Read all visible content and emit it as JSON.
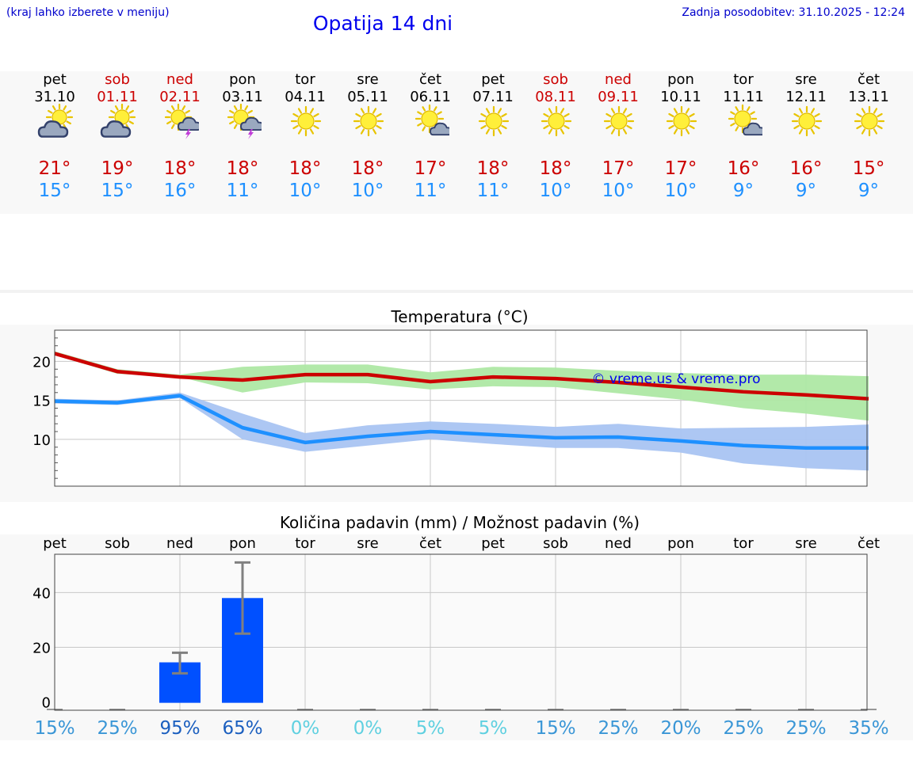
{
  "header": {
    "hint": "(kraj lahko izberete v meniju)",
    "title": "Opatija 14 dni",
    "updated": "Zadnja posodobitev: 31.10.2025 - 12:24"
  },
  "days": [
    {
      "name": "pet",
      "date": "31.10",
      "weekend": false,
      "icon": "sun-cloud-icon",
      "tmax": "21°",
      "tmin": "15°"
    },
    {
      "name": "sob",
      "date": "01.11",
      "weekend": true,
      "icon": "sun-cloud-icon",
      "tmax": "19°",
      "tmin": "15°"
    },
    {
      "name": "ned",
      "date": "02.11",
      "weekend": true,
      "icon": "sun-thunder-icon",
      "tmax": "18°",
      "tmin": "16°"
    },
    {
      "name": "pon",
      "date": "03.11",
      "weekend": false,
      "icon": "sun-thunder-icon",
      "tmax": "18°",
      "tmin": "11°"
    },
    {
      "name": "tor",
      "date": "04.11",
      "weekend": false,
      "icon": "sun-icon",
      "tmax": "18°",
      "tmin": "10°"
    },
    {
      "name": "sre",
      "date": "05.11",
      "weekend": false,
      "icon": "sun-icon",
      "tmax": "18°",
      "tmin": "10°"
    },
    {
      "name": "čet",
      "date": "06.11",
      "weekend": false,
      "icon": "sun-small-cloud-icon",
      "tmax": "17°",
      "tmin": "11°"
    },
    {
      "name": "pet",
      "date": "07.11",
      "weekend": false,
      "icon": "sun-icon",
      "tmax": "18°",
      "tmin": "11°"
    },
    {
      "name": "sob",
      "date": "08.11",
      "weekend": true,
      "icon": "sun-icon",
      "tmax": "18°",
      "tmin": "10°"
    },
    {
      "name": "ned",
      "date": "09.11",
      "weekend": true,
      "icon": "sun-icon",
      "tmax": "17°",
      "tmin": "10°"
    },
    {
      "name": "pon",
      "date": "10.11",
      "weekend": false,
      "icon": "sun-icon",
      "tmax": "17°",
      "tmin": "10°"
    },
    {
      "name": "tor",
      "date": "11.11",
      "weekend": false,
      "icon": "sun-small-cloud-icon",
      "tmax": "16°",
      "tmin": "9°"
    },
    {
      "name": "sre",
      "date": "12.11",
      "weekend": false,
      "icon": "sun-icon",
      "tmax": "16°",
      "tmin": "9°"
    },
    {
      "name": "čet",
      "date": "13.11",
      "weekend": false,
      "icon": "sun-icon",
      "tmax": "15°",
      "tmin": "9°"
    }
  ],
  "colors": {
    "max": "#cc0000",
    "min": "#1e90ff",
    "max_band": "#aee8a4",
    "min_band": "#a9c4f2",
    "bar": "#0050ff",
    "error": "#808080"
  },
  "chart_data": [
    {
      "type": "line",
      "title": "Temperatura (°C)",
      "watermark": "© vreme.us & vreme.pro",
      "x": [
        "pet",
        "sob",
        "ned",
        "pon",
        "tor",
        "sre",
        "čet",
        "pet",
        "sob",
        "ned",
        "pon",
        "tor",
        "sre",
        "čet"
      ],
      "ylim": [
        4,
        24
      ],
      "yticks": [
        10,
        15,
        20
      ],
      "series": [
        {
          "name": "max",
          "values": [
            21.0,
            18.7,
            18.0,
            17.6,
            18.3,
            18.3,
            17.4,
            18.0,
            17.8,
            17.3,
            16.7,
            16.1,
            15.7,
            15.2
          ],
          "band_low": [
            20.8,
            18.4,
            18.0,
            16.0,
            17.3,
            17.2,
            16.4,
            16.8,
            16.7,
            15.9,
            15.1,
            14.0,
            13.3,
            12.4
          ],
          "band_high": [
            21.3,
            19.0,
            18.3,
            19.3,
            19.6,
            19.6,
            18.6,
            19.3,
            19.2,
            18.8,
            18.5,
            18.3,
            18.3,
            18.1
          ]
        },
        {
          "name": "min",
          "values": [
            14.9,
            14.7,
            15.6,
            11.5,
            9.6,
            10.4,
            11.0,
            10.6,
            10.2,
            10.3,
            9.8,
            9.2,
            8.9,
            8.9
          ],
          "band_low": [
            14.6,
            14.4,
            15.3,
            10.0,
            8.4,
            9.2,
            10.0,
            9.4,
            8.9,
            8.9,
            8.3,
            6.9,
            6.3,
            6.0
          ],
          "band_high": [
            15.2,
            15.0,
            16.0,
            13.3,
            10.8,
            11.8,
            12.3,
            12.0,
            11.6,
            12.0,
            11.4,
            11.5,
            11.6,
            11.9
          ]
        }
      ]
    },
    {
      "type": "bar",
      "title": "Količina padavin (mm) / Možnost padavin (%)",
      "categories": [
        "pet",
        "sob",
        "ned",
        "pon",
        "tor",
        "sre",
        "čet",
        "pet",
        "sob",
        "ned",
        "pon",
        "tor",
        "sre",
        "čet"
      ],
      "values": [
        0,
        0,
        14.5,
        38,
        0,
        0,
        0,
        0,
        0,
        0,
        0,
        0,
        0,
        0
      ],
      "error_low": [
        0,
        0,
        10.5,
        25,
        0,
        0,
        0,
        0,
        0,
        0,
        0,
        0,
        0,
        0
      ],
      "error_high": [
        0,
        0,
        18,
        51,
        0,
        0,
        0,
        0,
        0,
        0,
        0,
        0,
        0,
        0
      ],
      "ylim": [
        -3,
        54
      ],
      "yticks": [
        0,
        20,
        40
      ],
      "probability": [
        "15%",
        "25%",
        "95%",
        "65%",
        "0%",
        "0%",
        "5%",
        "5%",
        "15%",
        "25%",
        "20%",
        "25%",
        "25%",
        "35%"
      ]
    }
  ]
}
